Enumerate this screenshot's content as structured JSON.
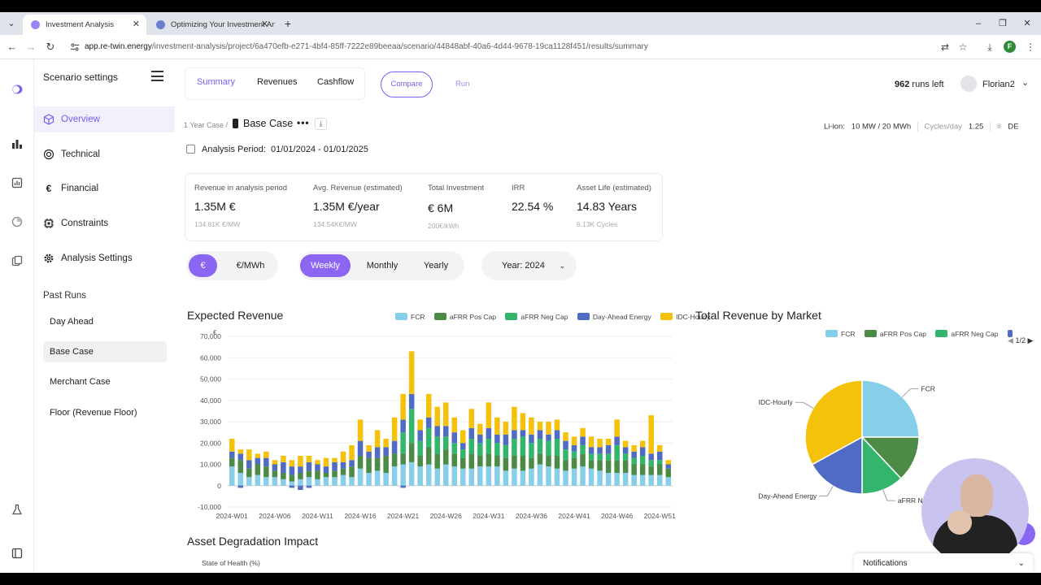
{
  "browser": {
    "tabs": [
      {
        "title": "Investment Analysis"
      },
      {
        "title": "Optimizing Your Investment Ana"
      }
    ],
    "url_host": "app.re-twin.energy",
    "url_path": "/investment-analysis/project/6a470efb-e271-4bf4-85ff-7222e89beeaa/scenario/44848abf-40a6-4d44-9678-19ca1128f451/results/summary",
    "profile_initial": "F"
  },
  "sidebar": {
    "title": "Scenario settings",
    "items": [
      {
        "label": "Overview",
        "icon": "cube-icon"
      },
      {
        "label": "Technical",
        "icon": "target-icon"
      },
      {
        "label": "Financial",
        "icon": "euro-icon"
      },
      {
        "label": "Constraints",
        "icon": "chip-icon"
      },
      {
        "label": "Analysis Settings",
        "icon": "gear-icon"
      }
    ],
    "past_runs_title": "Past Runs",
    "past_runs": [
      "Day Ahead",
      "Base Case",
      "Merchant Case",
      "Floor (Revenue Floor)"
    ]
  },
  "header": {
    "tabs": [
      "Summary",
      "Revenues",
      "Cashflow"
    ],
    "compare": "Compare",
    "run": "Run",
    "runs_left_count": "962",
    "runs_left_label": "runs left",
    "user": "Florian2"
  },
  "scenario": {
    "crumb": "1 Year Case /",
    "name": "Base Case",
    "tech_label": "Li-ion:",
    "tech_value": "10 MW / 20 MWh",
    "cycles_label": "Cycles/day",
    "cycles_value": "1.25",
    "country": "DE",
    "period_label": "Analysis Period:",
    "period_value": "01/01/2024 - 01/01/2025"
  },
  "kpis": [
    {
      "label": "Revenue in analysis period",
      "value": "1.35M €",
      "sub": "134.81K €/MW"
    },
    {
      "label": "Avg. Revenue (estimated)",
      "value": "1.35M €/year",
      "sub": "134.54K€/MW"
    },
    {
      "label": "Total Investment",
      "value": "€ 6M",
      "sub": "200€/kWh"
    },
    {
      "label": "IRR",
      "value": "22.54 %",
      "sub": ""
    },
    {
      "label": "Asset Life (estimated)",
      "value": "14.83 Years",
      "sub": "6.13K Cycles"
    }
  ],
  "controls": {
    "unit": [
      "€",
      "€/MWh"
    ],
    "granularity": [
      "Weekly",
      "Monthly",
      "Yearly"
    ],
    "year": "Year: 2024"
  },
  "colors": {
    "FCR": "#87ceeb",
    "aFRR Pos Cap": "#4b8b45",
    "aFRR Neg Cap": "#33b56b",
    "Day-Ahead Energy": "#4f6bc4",
    "IDC-Hourly": "#f5c20b",
    "accent": "#7b5cf5"
  },
  "expected_revenue": {
    "title": "Expected Revenue",
    "legend": [
      "FCR",
      "aFRR Pos Cap",
      "aFRR Neg Cap",
      "Day-Ahead Energy",
      "IDC-Hourly"
    ]
  },
  "market_pie": {
    "title": "Total Revenue by Market",
    "legend": [
      "FCR",
      "aFRR Pos Cap",
      "aFRR Neg Cap"
    ],
    "pager": "1/2"
  },
  "degradation": {
    "title": "Asset Degradation Impact",
    "ylabel": "State of Health (%)"
  },
  "notifications": "Notifications",
  "chart_data": [
    {
      "type": "bar",
      "stacked": true,
      "title": "Expected Revenue",
      "ylabel": "€",
      "ylim": [
        -10000,
        70000
      ],
      "yticks": [
        "70,000",
        "60,000",
        "50,000",
        "40,000",
        "30,000",
        "20,000",
        "10,000",
        "0",
        "-10,000"
      ],
      "xticks": [
        "2024-W01",
        "2024-W06",
        "2024-W11",
        "2024-W16",
        "2024-W21",
        "2024-W26",
        "2024-W31",
        "2024-W36",
        "2024-W41",
        "2024-W46",
        "2024-W51"
      ],
      "categories": [
        "W01",
        "W02",
        "W03",
        "W04",
        "W05",
        "W06",
        "W07",
        "W08",
        "W09",
        "W10",
        "W11",
        "W12",
        "W13",
        "W14",
        "W15",
        "W16",
        "W17",
        "W18",
        "W19",
        "W20",
        "W21",
        "W22",
        "W23",
        "W24",
        "W25",
        "W26",
        "W27",
        "W28",
        "W29",
        "W30",
        "W31",
        "W32",
        "W33",
        "W34",
        "W35",
        "W36",
        "W37",
        "W38",
        "W39",
        "W40",
        "W41",
        "W42",
        "W43",
        "W44",
        "W45",
        "W46",
        "W47",
        "W48",
        "W49",
        "W50",
        "W51",
        "W52"
      ],
      "series": [
        {
          "name": "FCR",
          "values": [
            9000,
            6000,
            4000,
            5000,
            4000,
            4000,
            3000,
            2000,
            3000,
            4000,
            3000,
            4000,
            4000,
            5000,
            4000,
            8000,
            6000,
            7000,
            6000,
            9000,
            10000,
            11000,
            9000,
            10000,
            8000,
            10000,
            9000,
            8000,
            8000,
            9000,
            9000,
            9000,
            7000,
            8000,
            7000,
            8000,
            10000,
            9000,
            8000,
            7000,
            8000,
            9000,
            8000,
            7000,
            6000,
            6000,
            6000,
            5000,
            5000,
            5000,
            5000,
            4000
          ]
        },
        {
          "name": "aFRR Pos Cap",
          "values": [
            4000,
            6000,
            4000,
            5000,
            5000,
            3000,
            3000,
            3000,
            3000,
            3000,
            4000,
            2000,
            3000,
            3000,
            5000,
            6000,
            7000,
            6000,
            8000,
            6000,
            5000,
            9000,
            5000,
            8000,
            7000,
            7000,
            6000,
            5000,
            7000,
            5000,
            6000,
            5000,
            6000,
            6000,
            7000,
            5000,
            5000,
            5000,
            6000,
            5000,
            5000,
            6000,
            4000,
            5000,
            6000,
            6000,
            6000,
            5000,
            5000,
            4000,
            5000,
            4000
          ]
        },
        {
          "name": "aFRR Neg Cap",
          "values": [
            0,
            0,
            0,
            0,
            0,
            0,
            0,
            0,
            0,
            0,
            0,
            0,
            0,
            0,
            0,
            0,
            0,
            0,
            0,
            0,
            10000,
            16000,
            7000,
            9000,
            8000,
            6000,
            5000,
            4000,
            7000,
            6000,
            7000,
            6000,
            6000,
            8000,
            9000,
            7000,
            7000,
            7000,
            8000,
            5000,
            3000,
            4000,
            3000,
            3000,
            3000,
            7000,
            3000,
            3000,
            4000,
            3000,
            2000,
            0
          ]
        },
        {
          "name": "Day-Ahead Energy",
          "values": [
            3000,
            3000,
            4000,
            3000,
            4000,
            3000,
            5000,
            4000,
            3000,
            4000,
            3000,
            3000,
            4000,
            3000,
            3000,
            7000,
            3000,
            5000,
            4000,
            6000,
            6000,
            7000,
            5000,
            5000,
            5000,
            5000,
            5000,
            3000,
            5000,
            4000,
            5000,
            4000,
            5000,
            4000,
            3000,
            4000,
            4000,
            3000,
            4000,
            4000,
            3000,
            4000,
            3000,
            3000,
            4000,
            4000,
            3000,
            3000,
            4000,
            3000,
            4000,
            2000
          ]
        },
        {
          "name": "IDC-Hourly",
          "values": [
            6000,
            2000,
            5000,
            2000,
            3000,
            2000,
            3000,
            3000,
            5000,
            3000,
            2000,
            4000,
            2000,
            5000,
            7000,
            10000,
            3000,
            8000,
            4000,
            11000,
            12000,
            20000,
            5000,
            11000,
            9000,
            11000,
            7000,
            6000,
            9000,
            5000,
            12000,
            8000,
            6000,
            11000,
            8000,
            8000,
            4000,
            6000,
            5000,
            4000,
            4000,
            4000,
            5000,
            4000,
            3000,
            8000,
            3000,
            3000,
            3000,
            18000,
            3000,
            2000
          ]
        }
      ],
      "negative": {
        "name": "Day-Ahead Energy",
        "values": [
          0,
          -1000,
          0,
          0,
          0,
          0,
          0,
          -1000,
          -2000,
          -1000,
          0,
          0,
          0,
          0,
          0,
          0,
          0,
          0,
          0,
          0,
          -1000,
          0,
          0,
          0,
          0,
          0,
          0,
          0,
          0,
          0,
          0,
          0,
          0,
          0,
          0,
          0,
          0,
          0,
          0,
          0,
          0,
          0,
          0,
          0,
          0,
          0,
          0,
          0,
          0,
          0,
          0,
          0
        ]
      }
    },
    {
      "type": "pie",
      "title": "Total Revenue by Market",
      "slices": [
        {
          "label": "FCR",
          "value": 25
        },
        {
          "label": "aFRR Pos Cap",
          "value": 13
        },
        {
          "label": "aFRR Neg Cap",
          "value": 12
        },
        {
          "label": "Day-Ahead Energy",
          "value": 17
        },
        {
          "label": "IDC-Hourly",
          "value": 33
        }
      ],
      "visible_labels": [
        "IDC-Hourly",
        "FCR",
        "Day-Ahead Energy",
        "aFRR Neg Ca"
      ]
    }
  ]
}
